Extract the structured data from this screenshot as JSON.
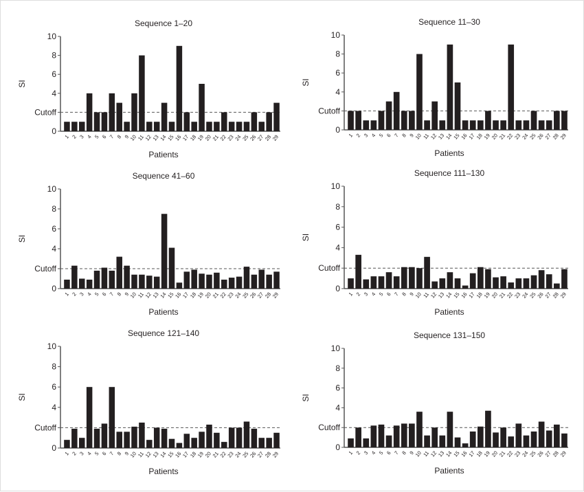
{
  "chart_data": [
    {
      "type": "bar",
      "title": "Sequence 1–20",
      "xlabel": "Patients",
      "ylabel": "SI",
      "ylim": [
        0,
        10
      ],
      "yticks": [
        {
          "value": 0,
          "label": "0"
        },
        {
          "value": 2,
          "label": "Cutoff"
        },
        {
          "value": 4,
          "label": "4"
        },
        {
          "value": 6,
          "label": "6"
        },
        {
          "value": 8,
          "label": "8"
        },
        {
          "value": 10,
          "label": "10"
        }
      ],
      "cutoff": 2,
      "categories": [
        "1",
        "2",
        "3",
        "4",
        "5",
        "6",
        "7",
        "8",
        "9",
        "10",
        "11",
        "12",
        "13",
        "14",
        "15",
        "16",
        "17",
        "18",
        "19",
        "20",
        "21",
        "22",
        "23",
        "24",
        "25",
        "26",
        "27",
        "28",
        "29"
      ],
      "values": [
        1,
        1,
        1,
        4,
        2,
        2,
        4,
        3,
        1,
        4,
        8,
        1,
        1,
        3,
        1,
        9,
        2,
        1,
        5,
        1,
        1,
        2,
        1,
        1,
        1,
        2,
        1,
        2,
        3
      ]
    },
    {
      "type": "bar",
      "title": "Sequence 11–30",
      "xlabel": "Patients",
      "ylabel": "SI",
      "ylim": [
        0,
        10
      ],
      "yticks": [
        {
          "value": 0,
          "label": "0"
        },
        {
          "value": 2,
          "label": "Cutoff"
        },
        {
          "value": 4,
          "label": "4"
        },
        {
          "value": 6,
          "label": "6"
        },
        {
          "value": 8,
          "label": "8"
        },
        {
          "value": 10,
          "label": "10"
        }
      ],
      "cutoff": 2,
      "categories": [
        "1",
        "2",
        "3",
        "4",
        "5",
        "6",
        "7",
        "8",
        "9",
        "10",
        "11",
        "12",
        "13",
        "14",
        "15",
        "16",
        "17",
        "18",
        "19",
        "20",
        "21",
        "22",
        "23",
        "24",
        "25",
        "26",
        "27",
        "28",
        "29"
      ],
      "values": [
        2,
        2,
        1,
        1,
        2,
        3,
        4,
        2,
        2,
        8,
        1,
        3,
        1,
        9,
        5,
        1,
        1,
        1,
        2,
        1,
        1,
        9,
        1,
        1,
        2,
        1,
        1,
        2,
        2
      ]
    },
    {
      "type": "bar",
      "title": "Sequence 41–60",
      "xlabel": "Patients",
      "ylabel": "SI",
      "ylim": [
        0,
        10
      ],
      "yticks": [
        {
          "value": 0,
          "label": "0"
        },
        {
          "value": 2,
          "label": "Cutoff"
        },
        {
          "value": 4,
          "label": "4"
        },
        {
          "value": 6,
          "label": "6"
        },
        {
          "value": 8,
          "label": "8"
        },
        {
          "value": 10,
          "label": "10"
        }
      ],
      "cutoff": 2,
      "categories": [
        "1",
        "2",
        "3",
        "4",
        "5",
        "6",
        "7",
        "8",
        "9",
        "10",
        "11",
        "12",
        "13",
        "14",
        "15",
        "16",
        "17",
        "18",
        "19",
        "20",
        "21",
        "22",
        "23",
        "24",
        "25",
        "26",
        "27",
        "28",
        "29"
      ],
      "values": [
        0.9,
        2.3,
        1.0,
        0.9,
        1.8,
        2.1,
        1.8,
        3.2,
        2.3,
        1.4,
        1.4,
        1.3,
        1.2,
        7.5,
        4.1,
        0.6,
        1.7,
        1.9,
        1.5,
        1.4,
        1.6,
        0.9,
        1.1,
        1.2,
        2.2,
        1.4,
        1.9,
        1.4,
        1.7
      ]
    },
    {
      "type": "bar",
      "title": "Sequence 111–130",
      "xlabel": "Patients",
      "ylabel": "SI",
      "ylim": [
        0,
        10
      ],
      "yticks": [
        {
          "value": 0,
          "label": "0"
        },
        {
          "value": 2,
          "label": "Cutoff"
        },
        {
          "value": 4,
          "label": "4"
        },
        {
          "value": 6,
          "label": "6"
        },
        {
          "value": 8,
          "label": "8"
        },
        {
          "value": 10,
          "label": "10"
        }
      ],
      "cutoff": 2,
      "categories": [
        "1",
        "2",
        "3",
        "4",
        "5",
        "6",
        "7",
        "8",
        "9",
        "10",
        "11",
        "12",
        "13",
        "14",
        "15",
        "16",
        "17",
        "18",
        "19",
        "20",
        "21",
        "22",
        "23",
        "24",
        "25",
        "26",
        "27",
        "28",
        "29"
      ],
      "values": [
        1.0,
        3.3,
        0.9,
        1.2,
        1.2,
        1.6,
        1.2,
        2.1,
        2.1,
        2.0,
        3.1,
        0.7,
        1.0,
        1.6,
        1.0,
        0.3,
        1.5,
        2.1,
        1.9,
        1.1,
        1.2,
        0.6,
        1.0,
        1.0,
        1.3,
        1.8,
        1.4,
        0.5,
        1.9
      ]
    },
    {
      "type": "bar",
      "title": "Sequence 121–140",
      "xlabel": "Patients",
      "ylabel": "SI",
      "ylim": [
        0,
        10
      ],
      "yticks": [
        {
          "value": 0,
          "label": "0"
        },
        {
          "value": 2,
          "label": "Cutoff"
        },
        {
          "value": 4,
          "label": "4"
        },
        {
          "value": 6,
          "label": "6"
        },
        {
          "value": 8,
          "label": "8"
        },
        {
          "value": 10,
          "label": "10"
        }
      ],
      "cutoff": 2,
      "categories": [
        "1",
        "2",
        "3",
        "4",
        "5",
        "6",
        "7",
        "8",
        "9",
        "10",
        "11",
        "12",
        "13",
        "14",
        "15",
        "16",
        "17",
        "18",
        "19",
        "20",
        "21",
        "22",
        "23",
        "24",
        "25",
        "26",
        "27",
        "28",
        "29"
      ],
      "values": [
        0.8,
        1.9,
        1.0,
        6,
        1.9,
        2.4,
        6,
        1.6,
        1.6,
        2.1,
        2.5,
        0.8,
        2.0,
        1.9,
        0.9,
        0.5,
        1.4,
        1.0,
        1.6,
        2.3,
        1.5,
        0.6,
        2.0,
        2.0,
        2.6,
        1.9,
        1.0,
        1.0,
        1.5
      ]
    },
    {
      "type": "bar",
      "title": "Sequence 131–150",
      "xlabel": "Patients",
      "ylabel": "SI",
      "ylim": [
        0,
        10
      ],
      "yticks": [
        {
          "value": 0,
          "label": "0"
        },
        {
          "value": 2,
          "label": "Cutoff"
        },
        {
          "value": 4,
          "label": "4"
        },
        {
          "value": 6,
          "label": "6"
        },
        {
          "value": 8,
          "label": "8"
        },
        {
          "value": 10,
          "label": "10"
        }
      ],
      "cutoff": 2,
      "categories": [
        "1",
        "2",
        "3",
        "4",
        "5",
        "6",
        "7",
        "8",
        "9",
        "10",
        "11",
        "12",
        "13",
        "14",
        "15",
        "16",
        "17",
        "18",
        "19",
        "20",
        "21",
        "22",
        "23",
        "24",
        "25",
        "26",
        "27",
        "28",
        "29"
      ],
      "values": [
        0.9,
        2.0,
        0.9,
        2.2,
        2.3,
        1.2,
        2.2,
        2.4,
        2.4,
        3.6,
        1.2,
        2.0,
        1.2,
        3.6,
        1.0,
        0.4,
        1.6,
        2.1,
        3.7,
        1.5,
        2.0,
        1.1,
        2.4,
        1.2,
        1.6,
        2.6,
        1.7,
        2.3,
        1.4
      ]
    }
  ],
  "colors": {
    "bar": "#231f20",
    "axis": "#555555",
    "cutoff_line": "#555555"
  }
}
